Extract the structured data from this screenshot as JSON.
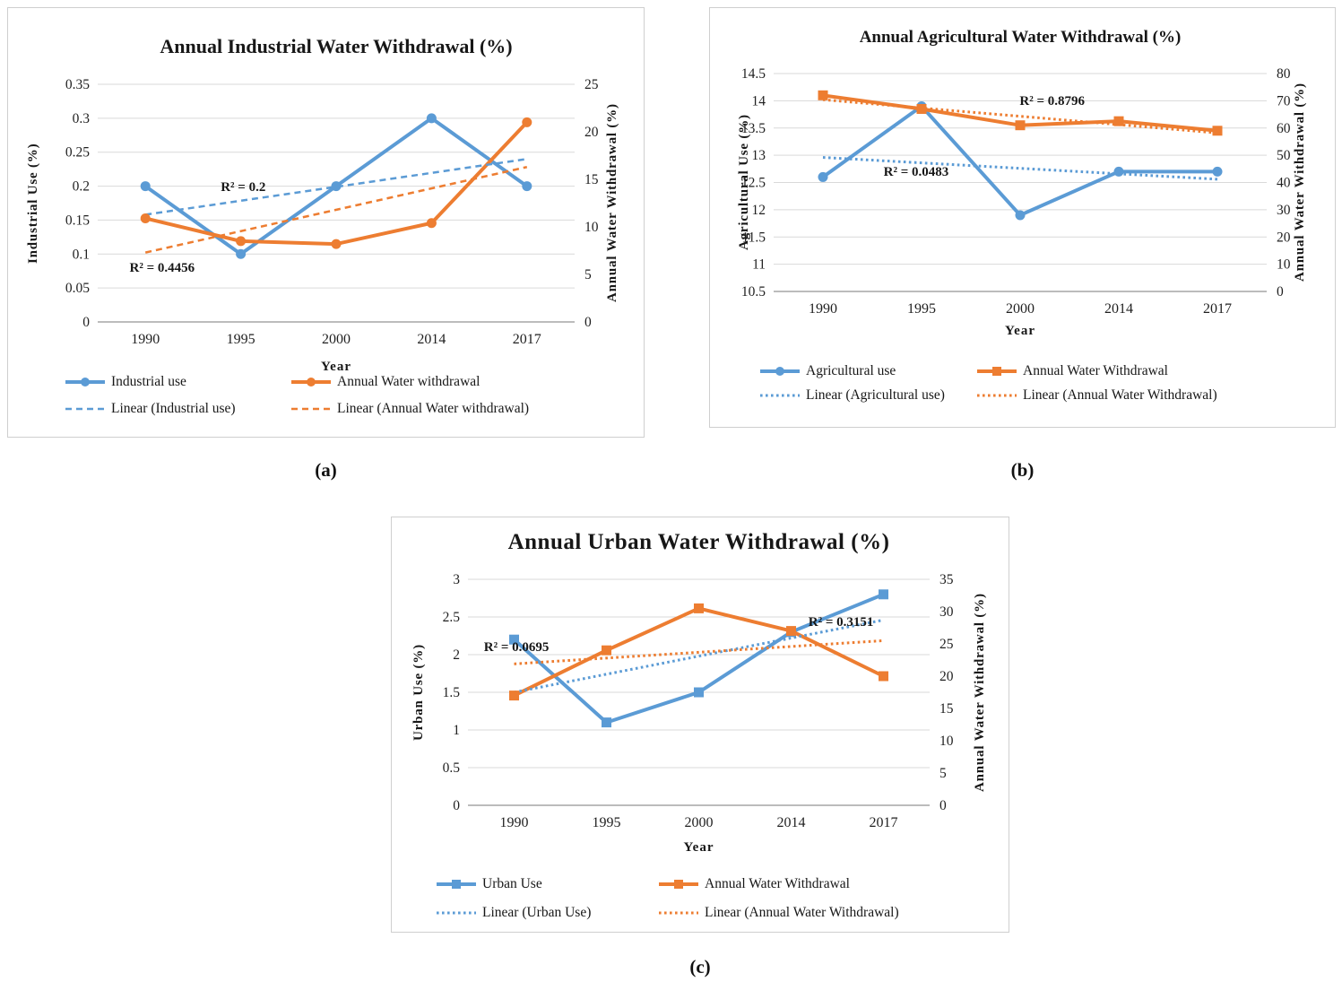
{
  "colors": {
    "blue": "#5B9BD5",
    "orange": "#ED7D31",
    "gridline": "#D9D9D9",
    "axis_line": "#A6A6A6",
    "text": "#1F1F1F",
    "panel_border": "#CFCFCF"
  },
  "captions": {
    "a": "(a)",
    "b": "(b)",
    "c": "(c)"
  },
  "chart_data": [
    {
      "id": "industrial-water-withdrawal",
      "type": "line",
      "title": "Annual Industrial Water Withdrawal (%)",
      "xlabel": "Year",
      "x": [
        "1990",
        "1995",
        "2000",
        "2014",
        "2017"
      ],
      "grid": true,
      "legend_position": "bottom",
      "left_axis": {
        "title": "Industrial Use (%)",
        "min": 0,
        "max": 0.35,
        "ticks": [
          "0.35",
          "0.3",
          "0.25",
          "0.2",
          "0.15",
          "0.1",
          "0.05",
          "0"
        ]
      },
      "right_axis": {
        "title": "Annual Water Withdrawal (%)",
        "min": 0,
        "max": 25,
        "ticks": [
          "25",
          "20",
          "15",
          "10",
          "5",
          "0"
        ]
      },
      "series": [
        {
          "name": "Industrial use",
          "axis": "left",
          "color_key": "blue",
          "marker": "circle",
          "values": [
            0.2,
            0.1,
            0.2,
            0.3,
            0.2
          ]
        },
        {
          "name": "Annual Water withdrawal",
          "axis": "right",
          "color_key": "orange",
          "marker": "circle",
          "values": [
            10.9,
            8.5,
            8.2,
            10.4,
            21
          ]
        }
      ],
      "trendlines": [
        {
          "name": "Linear (Industrial use)",
          "axis": "left",
          "color_key": "blue",
          "style": "dashed",
          "start": 0.158,
          "end": 0.24,
          "r2": "R² = 0.2",
          "r2_fx": 0.305,
          "r2_fy": 0.43
        },
        {
          "name": "Linear (Annual Water withdrawal)",
          "axis": "right",
          "color_key": "orange",
          "style": "dashed",
          "start": 7.3,
          "end": 16.3,
          "r2": "R² = 0.4456",
          "r2_fx": 0.135,
          "r2_fy": 0.77
        }
      ]
    },
    {
      "id": "agricultural-water-withdrawal",
      "type": "line",
      "title": "Annual Agricultural Water Withdrawal (%)",
      "xlabel": "Year",
      "x": [
        "1990",
        "1995",
        "2000",
        "2014",
        "2017"
      ],
      "grid": true,
      "legend_position": "bottom",
      "left_axis": {
        "title": "Agricultural Use (%)",
        "min": 10.5,
        "max": 14.5,
        "ticks": [
          "14.5",
          "14",
          "13.5",
          "13",
          "12.5",
          "12",
          "11.5",
          "11",
          "10.5"
        ]
      },
      "right_axis": {
        "title": "Annual Water Withdrawal (%)",
        "min": 0,
        "max": 80,
        "ticks": [
          "80",
          "70",
          "60",
          "50",
          "40",
          "30",
          "20",
          "10",
          "0"
        ]
      },
      "series": [
        {
          "name": "Agricultural use",
          "axis": "left",
          "color_key": "blue",
          "marker": "circle",
          "values": [
            12.6,
            13.9,
            11.9,
            12.7,
            12.7
          ]
        },
        {
          "name": "Annual Water Withdrawal",
          "axis": "right",
          "color_key": "orange",
          "marker": "square",
          "values": [
            72,
            67,
            61,
            62.5,
            59
          ]
        }
      ],
      "trendlines": [
        {
          "name": "Linear (Agricultural use)",
          "axis": "left",
          "color_key": "blue",
          "style": "dotted",
          "start": 12.96,
          "end": 12.56,
          "r2": "R² = 0.0483",
          "r2_fx": 0.289,
          "r2_fy": 0.449
        },
        {
          "name": "Linear (Annual Water Withdrawal)",
          "axis": "right",
          "color_key": "orange",
          "style": "dotted",
          "start": 70.4,
          "end": 58.2,
          "r2": "R² = 0.8796",
          "r2_fx": 0.565,
          "r2_fy": 0.123
        }
      ]
    },
    {
      "id": "urban-water-withdrawal",
      "type": "line",
      "title": "Annual Urban Water Withdrawal (%)",
      "xlabel": "Year",
      "x": [
        "1990",
        "1995",
        "2000",
        "2014",
        "2017"
      ],
      "grid": true,
      "legend_position": "bottom",
      "left_axis": {
        "title": "Urban Use (%)",
        "min": 0,
        "max": 3,
        "ticks": [
          "3",
          "2.5",
          "2",
          "1.5",
          "1",
          "0.5",
          "0"
        ]
      },
      "right_axis": {
        "title": "Annual Water Withdrawal (%)",
        "min": 0,
        "max": 35,
        "ticks": [
          "35",
          "30",
          "25",
          "20",
          "15",
          "10",
          "5",
          "0"
        ]
      },
      "series": [
        {
          "name": "Urban Use",
          "axis": "left",
          "color_key": "blue",
          "marker": "square",
          "values": [
            2.2,
            1.1,
            1.5,
            2.3,
            2.8
          ]
        },
        {
          "name": "Annual Water Withdrawal",
          "axis": "right",
          "color_key": "orange",
          "marker": "square",
          "values": [
            17,
            24,
            30.5,
            27,
            20
          ]
        }
      ],
      "trendlines": [
        {
          "name": "Linear (Urban Use)",
          "axis": "left",
          "color_key": "blue",
          "style": "dotted",
          "start": 1.5,
          "end": 2.46,
          "r2": "R² = 0.3151",
          "r2_fx": 0.808,
          "r2_fy": 0.187
        },
        {
          "name": "Linear (Annual Water Withdrawal)",
          "axis": "right",
          "color_key": "orange",
          "style": "dotted",
          "start": 21.9,
          "end": 25.5,
          "r2": "R² = 0.0695",
          "r2_fx": 0.105,
          "r2_fy": 0.298
        }
      ]
    }
  ]
}
